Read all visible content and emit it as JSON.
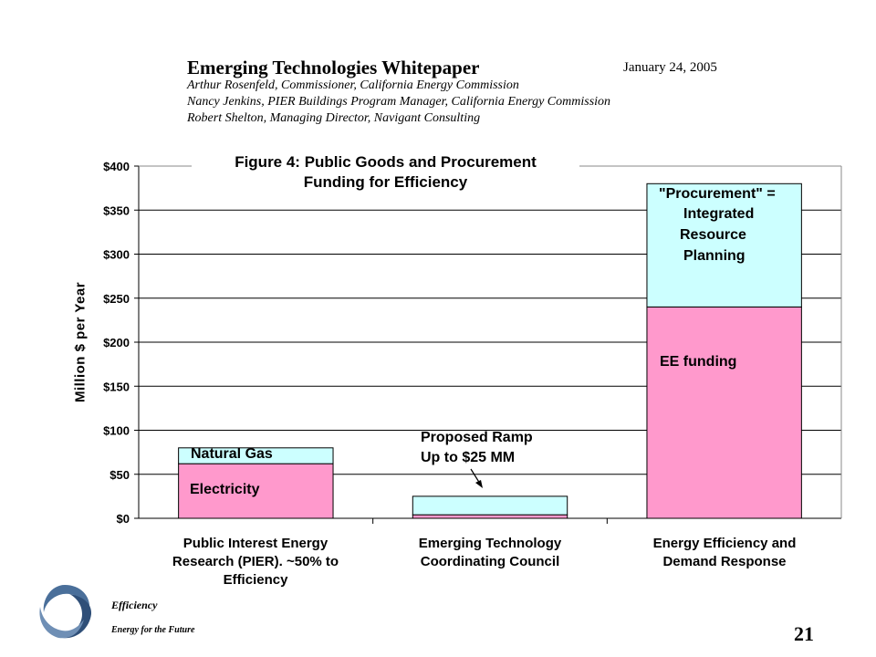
{
  "header": {
    "title": "Emerging Technologies Whitepaper",
    "date": "January 24, 2005",
    "authors": [
      "Arthur Rosenfeld, Commissioner, California Energy Commission",
      "Nancy Jenkins, PIER Buildings Program Manager, California Energy Commission",
      "Robert Shelton, Managing Director, Navigant Consulting"
    ]
  },
  "chart_data": {
    "type": "bar",
    "stacked": true,
    "title": [
      "Figure 4: Public Goods and Procurement",
      "Funding for Efficiency"
    ],
    "ylabel": "Million $ per Year",
    "ylim": [
      0,
      400
    ],
    "yticks": [
      "$0",
      "$50",
      "$100",
      "$150",
      "$200",
      "$250",
      "$300",
      "$350",
      "$400"
    ],
    "grid": true,
    "categories": [
      [
        "Public Interest Energy",
        "Research (PIER). ~50% to",
        "Efficiency"
      ],
      [
        "Emerging Technology",
        "Coordinating Council"
      ],
      [
        "Energy Efficiency and",
        "Demand Response"
      ]
    ],
    "series": [
      {
        "values": [
          62,
          4,
          240
        ],
        "color": "#ff99cc"
      },
      {
        "values": [
          18,
          21,
          140
        ],
        "color": "#ccffff"
      }
    ],
    "annotations": {
      "natural_gas": "Natural Gas",
      "electricity": "Electricity",
      "ramp": [
        "Proposed  Ramp",
        "Up to $25 MM"
      ],
      "procurement": [
        "\"Procurement\" =",
        "Integrated",
        "Resource",
        "Planning"
      ],
      "ee_funding": "EE funding"
    }
  },
  "footer": {
    "logo_text": "Efficiency",
    "tagline": "Energy for the Future",
    "page_number": "21"
  }
}
